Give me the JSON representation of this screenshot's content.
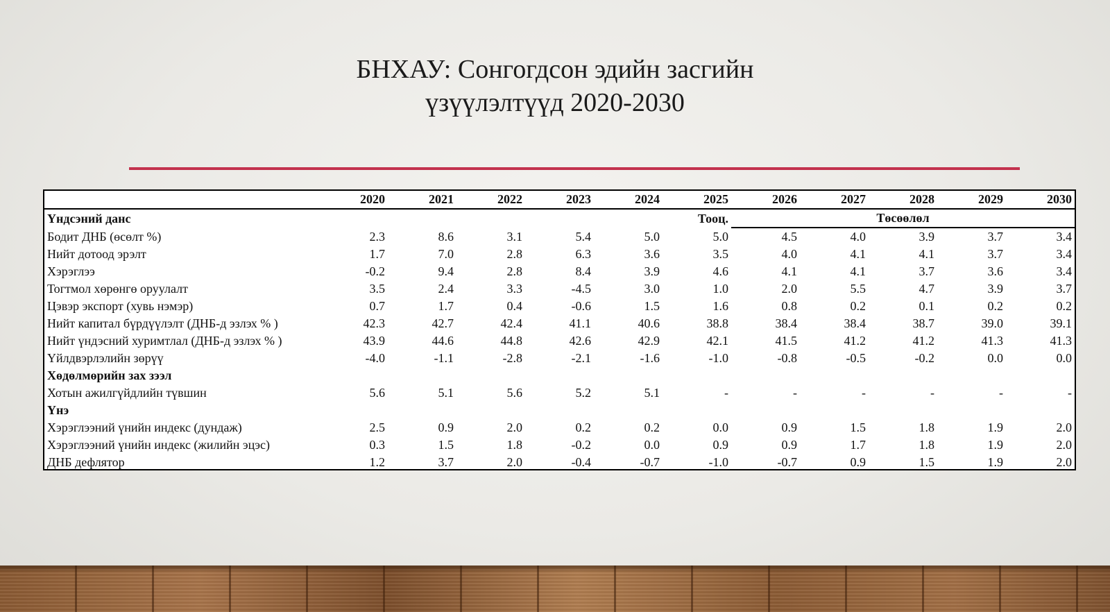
{
  "slide": {
    "title_line1": "БНХАУ: Сонгогдсон эдийн засгийн",
    "title_line2": "үзүүлэлтүүд 2020-2030"
  },
  "colors": {
    "accent_rule": "#c3324e"
  },
  "table": {
    "years": [
      "2020",
      "2021",
      "2022",
      "2023",
      "2024",
      "2025",
      "2026",
      "2027",
      "2028",
      "2029",
      "2030"
    ],
    "estimate_label": "Тооц.",
    "projection_label": "Төсөөлөл",
    "sections": [
      {
        "label": "Үндсэний данс"
      },
      {
        "label": "Хөдөлмөрийн зах зээл"
      },
      {
        "label": "Үнэ"
      }
    ],
    "rows": [
      {
        "label": "Бодит ДНБ (өсөлт %)",
        "values": [
          "2.3",
          "8.6",
          "3.1",
          "5.4",
          "5.0",
          "5.0",
          "4.5",
          "4.0",
          "3.9",
          "3.7",
          "3.4"
        ]
      },
      {
        "label": "Нийт дотоод эрэлт",
        "values": [
          "1.7",
          "7.0",
          "2.8",
          "6.3",
          "3.6",
          "3.5",
          "4.0",
          "4.1",
          "4.1",
          "3.7",
          "3.4"
        ]
      },
      {
        "label": "Хэрэглээ",
        "values": [
          "-0.2",
          "9.4",
          "2.8",
          "8.4",
          "3.9",
          "4.6",
          "4.1",
          "4.1",
          "3.7",
          "3.6",
          "3.4"
        ]
      },
      {
        "label": "Тогтмол хөрөнгө оруулалт",
        "values": [
          "3.5",
          "2.4",
          "3.3",
          "-4.5",
          "3.0",
          "1.0",
          "2.0",
          "5.5",
          "4.7",
          "3.9",
          "3.7"
        ]
      },
      {
        "label": "Цэвэр экспорт (хувь нэмэр)",
        "values": [
          "0.7",
          "1.7",
          "0.4",
          "-0.6",
          "1.5",
          "1.6",
          "0.8",
          "0.2",
          "0.1",
          "0.2",
          "0.2"
        ]
      },
      {
        "label": "Нийт капитал бүрдүүлэлт (ДНБ-д эзлэх % )",
        "values": [
          "42.3",
          "42.7",
          "42.4",
          "41.1",
          "40.6",
          "38.8",
          "38.4",
          "38.4",
          "38.7",
          "39.0",
          "39.1"
        ]
      },
      {
        "label": "Нийт үндэсний хуримтлал  (ДНБ-д эзлэх % )",
        "values": [
          "43.9",
          "44.6",
          "44.8",
          "42.6",
          "42.9",
          "42.1",
          "41.5",
          "41.2",
          "41.2",
          "41.3",
          "41.3"
        ]
      },
      {
        "label": "Үйлдвэрлэлийн зөрүү",
        "values": [
          "-4.0",
          "-1.1",
          "-2.8",
          "-2.1",
          "-1.6",
          "-1.0",
          "-0.8",
          "-0.5",
          "-0.2",
          "0.0",
          "0.0"
        ]
      },
      {
        "label": "Хотын ажилгүйдлийн түвшин",
        "values": [
          "5.6",
          "5.1",
          "5.6",
          "5.2",
          "5.1",
          "-",
          "-",
          "-",
          "-",
          "-",
          "-"
        ]
      },
      {
        "label": "Хэрэглээний үнийн индекс (дундаж)",
        "values": [
          "2.5",
          "0.9",
          "2.0",
          "0.2",
          "0.2",
          "0.0",
          "0.9",
          "1.5",
          "1.8",
          "1.9",
          "2.0"
        ]
      },
      {
        "label": "Хэрэглээний үнийн индекс (жилийн эцэс)",
        "values": [
          "0.3",
          "1.5",
          "1.8",
          "-0.2",
          "0.0",
          "0.9",
          "0.9",
          "1.7",
          "1.8",
          "1.9",
          "2.0"
        ]
      },
      {
        "label": "ДНБ дефлятор",
        "values": [
          "1.2",
          "3.7",
          "2.0",
          "-0.4",
          "-0.7",
          "-1.0",
          "-0.7",
          "0.9",
          "1.5",
          "1.9",
          "2.0"
        ]
      }
    ]
  }
}
